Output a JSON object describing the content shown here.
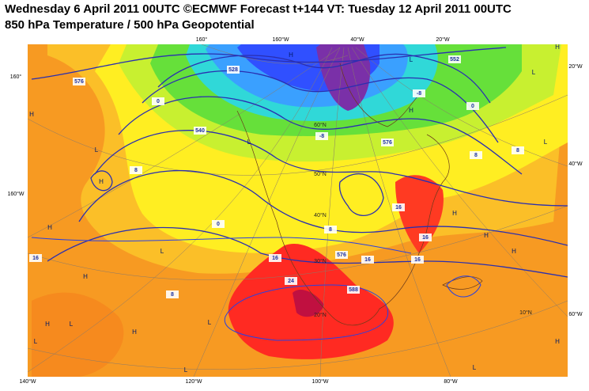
{
  "header": {
    "title": "Wednesday 6 April 2011 00UTC ©ECMWF Forecast t+144 VT: Tuesday 12 April 2011 00UTC",
    "subtitle": "850 hPa Temperature / 500 hPa Geopotential"
  },
  "map": {
    "edge_labels": [
      "160°",
      "160°W",
      "40°W",
      "20°W",
      "160°",
      "20°W",
      "160°W",
      "40°W",
      "60°W",
      "140°W",
      "120°W",
      "100°W",
      "80°W"
    ],
    "latitude_labels": [
      "10°N",
      "20°N",
      "30°N",
      "40°N",
      "50°N",
      "60°N"
    ],
    "pressure_centers": [
      "H",
      "L",
      "H",
      "H",
      "L",
      "L",
      "H",
      "L",
      "H",
      "L",
      "H",
      "L",
      "H",
      "L",
      "H",
      "H",
      "L",
      "H",
      "L",
      "H",
      "L",
      "H",
      "L",
      "H"
    ],
    "contour_labels": [
      "576",
      "540",
      "528",
      "0",
      "-8",
      "8",
      "8",
      "0",
      "8",
      "16",
      "16",
      "16",
      "16",
      "24",
      "576",
      "588",
      "8",
      "16",
      "576",
      "0",
      "-8",
      "16",
      "8",
      "552"
    ]
  }
}
